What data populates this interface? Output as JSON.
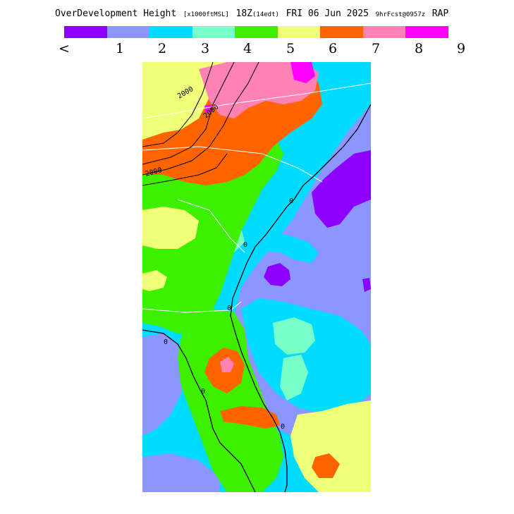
{
  "header": {
    "product": "OverDevelopment Height",
    "units": "[x1000ftMSL]",
    "valid": "18Z",
    "local_time": "(14edt)",
    "date": "FRI 06 Jun 2025",
    "forecast": "9hrFcst@0957z",
    "model": "RAP"
  },
  "legend": {
    "colors": [
      "#8c00ff",
      "#8c96ff",
      "#00dcff",
      "#78ffc8",
      "#3cf000",
      "#f0ff78",
      "#ff6400",
      "#ff82b4",
      "#ff00ff"
    ],
    "ticks": [
      "<",
      "1",
      "2",
      "3",
      "4",
      "5",
      "6",
      "7",
      "8",
      "9"
    ]
  },
  "map": {
    "contour_labels": [
      "2000",
      "2000",
      "2000",
      "0",
      "0",
      "0",
      "0",
      "0",
      "0"
    ]
  }
}
